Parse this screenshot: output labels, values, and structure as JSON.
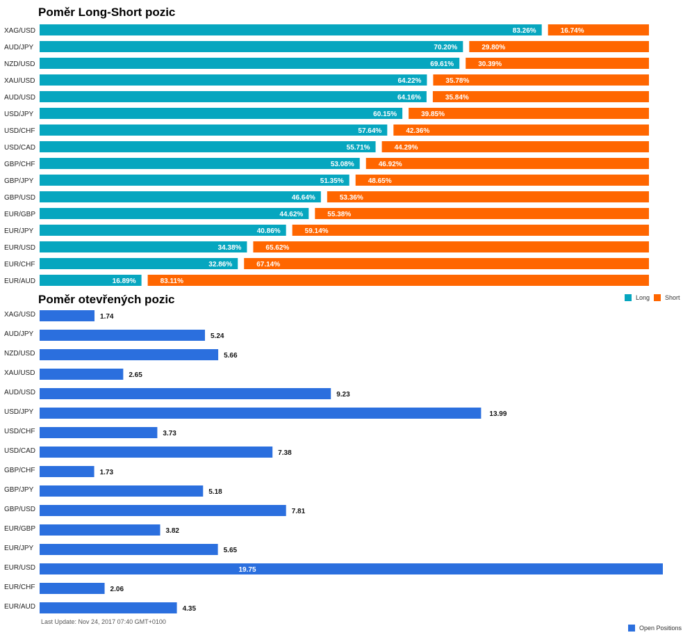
{
  "colors": {
    "long": "#06a6bf",
    "short": "#ff6600",
    "open": "#2b6fde"
  },
  "legend": {
    "long": "Long",
    "short": "Short",
    "open": "Open Positions"
  },
  "footer": {
    "last_update": "Last Update: Nov 24, 2017 07:40 GMT+0100"
  },
  "chart_data": [
    {
      "type": "bar",
      "orientation": "horizontal",
      "stacked": true,
      "title": "Poměr Long-Short pozic",
      "categories": [
        "XAG/USD",
        "AUD/JPY",
        "NZD/USD",
        "XAU/USD",
        "AUD/USD",
        "USD/JPY",
        "USD/CHF",
        "USD/CAD",
        "GBP/CHF",
        "GBP/JPY",
        "GBP/USD",
        "EUR/GBP",
        "EUR/JPY",
        "EUR/USD",
        "EUR/CHF",
        "EUR/AUD"
      ],
      "series": [
        {
          "name": "Long",
          "values": [
            83.26,
            70.2,
            69.61,
            64.22,
            64.16,
            60.15,
            57.64,
            55.71,
            53.08,
            51.35,
            46.64,
            44.62,
            40.86,
            34.38,
            32.86,
            16.89
          ]
        },
        {
          "name": "Short",
          "values": [
            16.74,
            29.8,
            30.39,
            35.78,
            35.84,
            39.85,
            42.36,
            44.29,
            46.92,
            48.65,
            53.36,
            55.38,
            59.14,
            65.62,
            67.14,
            83.11
          ]
        }
      ],
      "labels": {
        "Long": [
          "83.26%",
          "70.20%",
          "69.61%",
          "64.22%",
          "64.16%",
          "60.15%",
          "57.64%",
          "55.71%",
          "53.08%",
          "51.35%",
          "46.64%",
          "44.62%",
          "40.86%",
          "34.38%",
          "32.86%",
          "16.89%"
        ],
        "Short": [
          "16.74%",
          "29.80%",
          "30.39%",
          "35.78%",
          "35.84%",
          "39.85%",
          "42.36%",
          "44.29%",
          "46.92%",
          "48.65%",
          "53.36%",
          "55.38%",
          "59.14%",
          "65.62%",
          "67.14%",
          "83.11%"
        ]
      },
      "xlim": [
        0,
        100
      ],
      "legend_position": "bottom-right"
    },
    {
      "type": "bar",
      "orientation": "horizontal",
      "title": "Poměr otevřených pozic",
      "categories": [
        "XAG/USD",
        "AUD/JPY",
        "NZD/USD",
        "XAU/USD",
        "AUD/USD",
        "USD/JPY",
        "USD/CHF",
        "USD/CAD",
        "GBP/CHF",
        "GBP/JPY",
        "GBP/USD",
        "EUR/GBP",
        "EUR/JPY",
        "EUR/USD",
        "EUR/CHF",
        "EUR/AUD"
      ],
      "series": [
        {
          "name": "Open Positions",
          "values": [
            1.74,
            5.24,
            5.66,
            2.65,
            9.23,
            13.99,
            3.73,
            7.38,
            1.73,
            5.18,
            7.81,
            3.82,
            5.65,
            19.75,
            2.06,
            4.35
          ]
        }
      ],
      "labels": [
        "1.74",
        "5.24",
        "5.66",
        "2.65",
        "9.23",
        "13.99",
        "3.73",
        "7.38",
        "1.73",
        "5.18",
        "7.81",
        "3.82",
        "5.65",
        "19.75",
        "2.06",
        "4.35"
      ],
      "xlim": [
        0,
        19.75
      ],
      "legend_position": "bottom-right"
    }
  ]
}
